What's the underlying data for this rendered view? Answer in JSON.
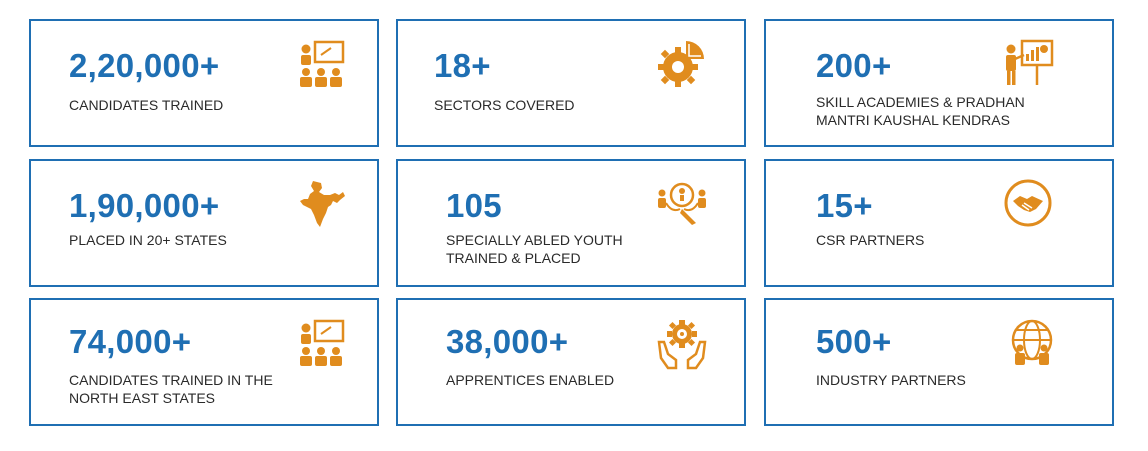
{
  "colors": {
    "accent_blue": "#1f6fb3",
    "icon_orange": "#e08c1e",
    "label_text": "#2a2a2a"
  },
  "stats": [
    {
      "value": "2,20,000+",
      "label": "CANDIDATES TRAINED",
      "icon": "classroom-training-icon"
    },
    {
      "value": "18+",
      "label": "SECTORS COVERED",
      "icon": "gear-pie-icon"
    },
    {
      "value": "200+",
      "label": "SKILL ACADEMIES & PRADHAN\nMANTRI KAUSHAL KENDRAS",
      "icon": "presentation-board-icon"
    },
    {
      "value": "1,90,000+",
      "label": "PLACED IN 20+ STATES",
      "icon": "india-map-icon"
    },
    {
      "value": "105",
      "label": "SPECIALLY ABLED YOUTH\nTRAINED & PLACED",
      "icon": "abled-youth-icon"
    },
    {
      "value": "15+",
      "label": "CSR PARTNERS",
      "icon": "handshake-icon"
    },
    {
      "value": "74,000+",
      "label": "CANDIDATES TRAINED IN THE\nNORTH EAST STATES",
      "icon": "classroom-training-icon"
    },
    {
      "value": "38,000+",
      "label": "APPRENTICES ENABLED",
      "icon": "hands-gear-icon"
    },
    {
      "value": "500+",
      "label": "INDUSTRY PARTNERS",
      "icon": "globe-partners-icon"
    }
  ]
}
